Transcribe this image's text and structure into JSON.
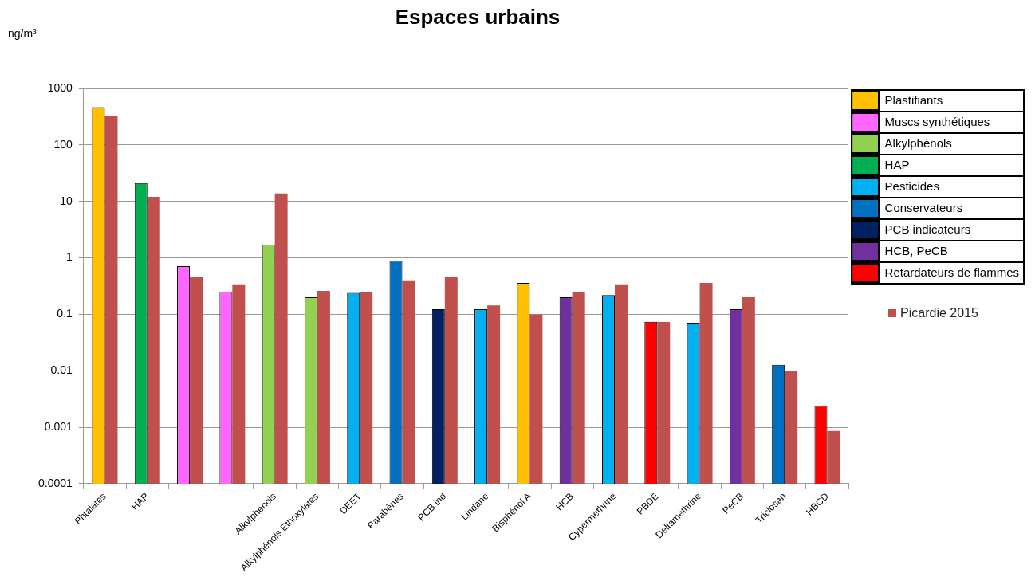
{
  "chart_data": {
    "type": "bar",
    "title": "Espaces urbains",
    "ylabel": "ng/m³",
    "categories": [
      "Phtalates",
      "HAP",
      null,
      null,
      "Alkylphénols",
      "Alkylphénols Ethoxylates",
      "DEET",
      "Parabènes",
      "PCB ind",
      "Lindane",
      "Bisphénol A",
      "HCB",
      "Cypermethrine",
      "PBDE",
      "Deltamethrine",
      "PeCB",
      "Triclosan",
      "HBCD"
    ],
    "series": [
      {
        "colors": [
          "#ffc000",
          "#00b050",
          "#ff66ff",
          "#ff66ff",
          "#92d050",
          "#92d050",
          "#00b0f0",
          "#0070c0",
          "#002060",
          "#00b0f0",
          "#ffc000",
          "#7030a0",
          "#00b0f0",
          "#ff0000",
          "#00b0f0",
          "#7030a0",
          "#0070c0",
          "#ff0000"
        ],
        "values": [
          466,
          21,
          0.71,
          0.25,
          1.7,
          0.2,
          0.24,
          0.89,
          0.123,
          0.123,
          0.36,
          0.2,
          0.22,
          0.074,
          0.071,
          0.123,
          0.0128,
          0.0024
        ]
      },
      {
        "name": "Picardie 2015",
        "color": "#c0504d",
        "values": [
          331,
          12,
          0.45,
          0.34,
          13.8,
          0.26,
          0.25,
          0.4,
          0.46,
          0.144,
          0.1,
          0.25,
          0.34,
          0.073,
          0.36,
          0.2,
          0.0099,
          0.00086
        ]
      },
      {
        "name": "Plastifiants",
        "color": "#ffc000",
        "values": [
          null,
          null,
          null,
          null,
          null,
          null,
          null,
          null,
          null,
          null,
          null,
          null,
          null,
          null,
          null,
          null,
          null,
          null
        ]
      },
      {
        "name": "Muscs synthétiques",
        "color": "#ff66ff",
        "values": [
          null,
          null,
          null,
          null,
          null,
          null,
          null,
          null,
          null,
          null,
          null,
          null,
          null,
          null,
          null,
          null,
          null,
          null
        ]
      },
      {
        "name": "Alkylphénols",
        "color": "#92d050",
        "values": [
          null,
          null,
          null,
          null,
          null,
          null,
          null,
          null,
          null,
          null,
          null,
          null,
          null,
          null,
          null,
          null,
          null,
          null
        ]
      },
      {
        "name": "HAP",
        "color": "#00b050",
        "values": [
          null,
          null,
          null,
          null,
          null,
          null,
          null,
          null,
          null,
          null,
          null,
          null,
          null,
          null,
          null,
          null,
          null,
          null
        ]
      },
      {
        "name": "Pesticides",
        "color": "#00b0f0",
        "values": [
          null,
          null,
          null,
          null,
          null,
          null,
          null,
          null,
          null,
          null,
          null,
          null,
          null,
          null,
          null,
          null,
          null,
          null
        ]
      },
      {
        "name": "Conservateurs",
        "color": "#0070c0",
        "values": [
          null,
          null,
          null,
          null,
          null,
          null,
          null,
          null,
          null,
          null,
          null,
          null,
          null,
          null,
          null,
          null,
          null,
          null
        ]
      },
      {
        "name": "PCB indicateurs",
        "color": "#002060",
        "values": [
          null,
          null,
          null,
          null,
          null,
          null,
          null,
          null,
          null,
          null,
          null,
          null,
          null,
          null,
          null,
          null,
          null,
          null
        ]
      },
      {
        "name": "HCB, PeCB",
        "color": "#7030a0",
        "values": [
          null,
          null,
          null,
          null,
          null,
          null,
          null,
          null,
          null,
          null,
          null,
          null,
          null,
          null,
          null,
          null,
          null,
          null
        ]
      },
      {
        "name": "Retardateurs de flammes",
        "color": "#ff0000",
        "values": [
          null,
          null,
          null,
          null,
          null,
          null,
          null,
          null,
          null,
          null,
          null,
          null,
          null,
          null,
          null,
          null,
          null,
          null
        ]
      }
    ],
    "log": true,
    "ylim": [
      0.0001,
      1000
    ],
    "yticks": [
      0.0001,
      0.001,
      0.01,
      0.1,
      1,
      10,
      100,
      1000
    ],
    "grid": "y",
    "legend": "right"
  }
}
